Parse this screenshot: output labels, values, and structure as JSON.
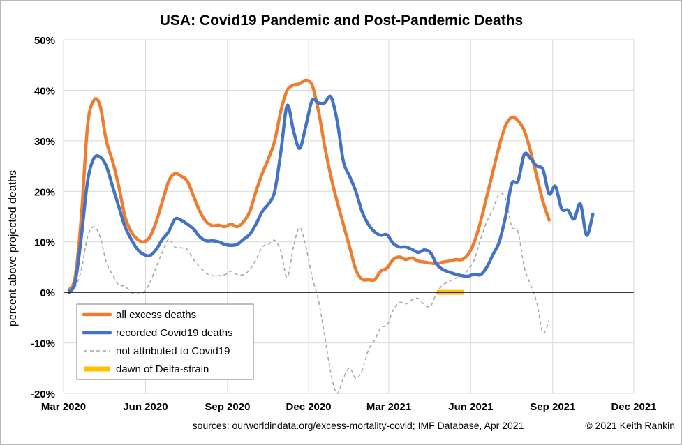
{
  "chart_data": {
    "type": "line",
    "title_prefix": "USA",
    "title_rest": ": Covid19 Pandemic and Post-Pandemic Deaths",
    "ylabel": "percent above projected deaths",
    "ylim": [
      -20,
      50
    ],
    "yticks": [
      -20,
      -10,
      0,
      10,
      20,
      30,
      40,
      50
    ],
    "ytick_labels": [
      "-20%",
      "-10%",
      "0%",
      "10%",
      "20%",
      "30%",
      "40%",
      "50%"
    ],
    "xlim": [
      "2020-03-01",
      "2021-12-01"
    ],
    "xticks": [
      "2020-03-01",
      "2020-06-01",
      "2020-09-01",
      "2020-12-01",
      "2021-03-01",
      "2021-06-01",
      "2021-09-01",
      "2021-12-01"
    ],
    "xtick_labels": [
      "Mar 2020",
      "Jun 2020",
      "Sep 2020",
      "Dec 2020",
      "Mar 2021",
      "Jun 2021",
      "Sep 2021",
      "Dec 2021"
    ],
    "grid": true,
    "legend_position": "bottom-left",
    "series": [
      {
        "name": "all excess deaths",
        "color": "#ED7D31",
        "style": "solid-thick",
        "points": [
          [
            "2020-03-07",
            0.5
          ],
          [
            "2020-03-14",
            3
          ],
          [
            "2020-03-21",
            15
          ],
          [
            "2020-03-28",
            33
          ],
          [
            "2020-04-04",
            38
          ],
          [
            "2020-04-11",
            37
          ],
          [
            "2020-04-18",
            30
          ],
          [
            "2020-04-25",
            26
          ],
          [
            "2020-05-02",
            21
          ],
          [
            "2020-05-09",
            15
          ],
          [
            "2020-05-16",
            12
          ],
          [
            "2020-05-23",
            10.5
          ],
          [
            "2020-05-30",
            10
          ],
          [
            "2020-06-06",
            11
          ],
          [
            "2020-06-13",
            14
          ],
          [
            "2020-06-20",
            18
          ],
          [
            "2020-06-27",
            22
          ],
          [
            "2020-07-04",
            23.5
          ],
          [
            "2020-07-11",
            23
          ],
          [
            "2020-07-18",
            22
          ],
          [
            "2020-07-25",
            19
          ],
          [
            "2020-08-01",
            16
          ],
          [
            "2020-08-08",
            14
          ],
          [
            "2020-08-15",
            13.2
          ],
          [
            "2020-08-22",
            13.3
          ],
          [
            "2020-08-29",
            13
          ],
          [
            "2020-09-05",
            13.5
          ],
          [
            "2020-09-12",
            13
          ],
          [
            "2020-09-19",
            14
          ],
          [
            "2020-09-26",
            16
          ],
          [
            "2020-10-03",
            20
          ],
          [
            "2020-10-10",
            23.5
          ],
          [
            "2020-10-17",
            26.5
          ],
          [
            "2020-10-24",
            30
          ],
          [
            "2020-10-31",
            36
          ],
          [
            "2020-11-07",
            40
          ],
          [
            "2020-11-14",
            41
          ],
          [
            "2020-11-21",
            41.3
          ],
          [
            "2020-11-28",
            42
          ],
          [
            "2020-12-05",
            41
          ],
          [
            "2020-12-12",
            36
          ],
          [
            "2020-12-19",
            29
          ],
          [
            "2020-12-26",
            23
          ],
          [
            "2021-01-02",
            18
          ],
          [
            "2021-01-09",
            13.5
          ],
          [
            "2021-01-16",
            9
          ],
          [
            "2021-01-23",
            4.5
          ],
          [
            "2021-01-30",
            2.6
          ],
          [
            "2021-02-06",
            2.5
          ],
          [
            "2021-02-13",
            2.5
          ],
          [
            "2021-02-20",
            4.2
          ],
          [
            "2021-02-27",
            4.8
          ],
          [
            "2021-03-06",
            6.5
          ],
          [
            "2021-03-13",
            7
          ],
          [
            "2021-03-20",
            6.5
          ],
          [
            "2021-03-27",
            6.8
          ],
          [
            "2021-04-03",
            6.2
          ],
          [
            "2021-04-10",
            6
          ],
          [
            "2021-04-17",
            5.8
          ],
          [
            "2021-04-24",
            5.7
          ],
          [
            "2021-05-01",
            6
          ],
          [
            "2021-05-08",
            6.2
          ],
          [
            "2021-05-15",
            6.5
          ],
          [
            "2021-05-22",
            6.5
          ],
          [
            "2021-05-29",
            7.5
          ],
          [
            "2021-06-05",
            10
          ],
          [
            "2021-06-12",
            14
          ],
          [
            "2021-06-19",
            19
          ],
          [
            "2021-06-26",
            24
          ],
          [
            "2021-07-03",
            29
          ],
          [
            "2021-07-10",
            33
          ],
          [
            "2021-07-17",
            34.6
          ],
          [
            "2021-07-24",
            34
          ],
          [
            "2021-07-31",
            32
          ],
          [
            "2021-08-07",
            28
          ],
          [
            "2021-08-14",
            23
          ],
          [
            "2021-08-21",
            18
          ],
          [
            "2021-08-28",
            14.3
          ]
        ]
      },
      {
        "name": "recorded Covid19 deaths",
        "color": "#4472C4",
        "style": "solid-thick",
        "points": [
          [
            "2020-03-07",
            0
          ],
          [
            "2020-03-14",
            2
          ],
          [
            "2020-03-21",
            11
          ],
          [
            "2020-03-28",
            22
          ],
          [
            "2020-04-04",
            26.5
          ],
          [
            "2020-04-11",
            26.8
          ],
          [
            "2020-04-18",
            25
          ],
          [
            "2020-04-25",
            21
          ],
          [
            "2020-05-02",
            17
          ],
          [
            "2020-05-09",
            13
          ],
          [
            "2020-05-16",
            10.5
          ],
          [
            "2020-05-23",
            8.5
          ],
          [
            "2020-05-30",
            7.5
          ],
          [
            "2020-06-06",
            7.3
          ],
          [
            "2020-06-13",
            8.5
          ],
          [
            "2020-06-20",
            10.5
          ],
          [
            "2020-06-27",
            12
          ],
          [
            "2020-07-04",
            14.5
          ],
          [
            "2020-07-11",
            14.3
          ],
          [
            "2020-07-18",
            13.5
          ],
          [
            "2020-07-25",
            12.5
          ],
          [
            "2020-08-01",
            11
          ],
          [
            "2020-08-08",
            10.2
          ],
          [
            "2020-08-15",
            10.2
          ],
          [
            "2020-08-22",
            10
          ],
          [
            "2020-08-29",
            9.5
          ],
          [
            "2020-09-05",
            9.3
          ],
          [
            "2020-09-12",
            9.5
          ],
          [
            "2020-09-19",
            10.5
          ],
          [
            "2020-09-26",
            11.5
          ],
          [
            "2020-10-03",
            13.5
          ],
          [
            "2020-10-10",
            16
          ],
          [
            "2020-10-17",
            17.5
          ],
          [
            "2020-10-24",
            20
          ],
          [
            "2020-10-31",
            28
          ],
          [
            "2020-11-07",
            37
          ],
          [
            "2020-11-14",
            32
          ],
          [
            "2020-11-21",
            28.5
          ],
          [
            "2020-11-28",
            33
          ],
          [
            "2020-12-05",
            38
          ],
          [
            "2020-12-12",
            37.5
          ],
          [
            "2020-12-19",
            37.5
          ],
          [
            "2020-12-26",
            38.7
          ],
          [
            "2021-01-02",
            34
          ],
          [
            "2021-01-09",
            26
          ],
          [
            "2021-01-16",
            23
          ],
          [
            "2021-01-23",
            20
          ],
          [
            "2021-01-30",
            16
          ],
          [
            "2021-02-06",
            13.5
          ],
          [
            "2021-02-13",
            12
          ],
          [
            "2021-02-20",
            11.3
          ],
          [
            "2021-02-27",
            11.4
          ],
          [
            "2021-03-06",
            9.7
          ],
          [
            "2021-03-13",
            9
          ],
          [
            "2021-03-20",
            9
          ],
          [
            "2021-03-27",
            8.5
          ],
          [
            "2021-04-03",
            7.9
          ],
          [
            "2021-04-10",
            8.4
          ],
          [
            "2021-04-17",
            7.8
          ],
          [
            "2021-04-24",
            5.5
          ],
          [
            "2021-05-01",
            4.5
          ],
          [
            "2021-05-08",
            4
          ],
          [
            "2021-05-15",
            3.6
          ],
          [
            "2021-05-22",
            3.3
          ],
          [
            "2021-05-29",
            3.2
          ],
          [
            "2021-06-05",
            3.6
          ],
          [
            "2021-06-12",
            3.5
          ],
          [
            "2021-06-19",
            5
          ],
          [
            "2021-06-26",
            7.5
          ],
          [
            "2021-07-03",
            10
          ],
          [
            "2021-07-10",
            15
          ],
          [
            "2021-07-17",
            21.5
          ],
          [
            "2021-07-24",
            22
          ],
          [
            "2021-07-31",
            27.3
          ],
          [
            "2021-08-07",
            26.5
          ],
          [
            "2021-08-14",
            25
          ],
          [
            "2021-08-21",
            24.3
          ],
          [
            "2021-08-28",
            19.5
          ],
          [
            "2021-09-04",
            21
          ],
          [
            "2021-09-11",
            16.5
          ],
          [
            "2021-09-18",
            16.3
          ],
          [
            "2021-09-25",
            14.5
          ],
          [
            "2021-10-02",
            17.5
          ],
          [
            "2021-10-09",
            11.3
          ],
          [
            "2021-10-16",
            15.5
          ]
        ]
      },
      {
        "name": "not attributed to Covid19",
        "color": "#A6A6A6",
        "style": "dashed",
        "points": [
          [
            "2020-03-07",
            0.5
          ],
          [
            "2020-03-14",
            1
          ],
          [
            "2020-03-21",
            4.5
          ],
          [
            "2020-03-28",
            11
          ],
          [
            "2020-04-04",
            13
          ],
          [
            "2020-04-11",
            11
          ],
          [
            "2020-04-18",
            6
          ],
          [
            "2020-04-25",
            3.5
          ],
          [
            "2020-05-02",
            1.5
          ],
          [
            "2020-05-09",
            1.2
          ],
          [
            "2020-05-16",
            0
          ],
          [
            "2020-05-23",
            -0.3
          ],
          [
            "2020-05-30",
            0
          ],
          [
            "2020-06-06",
            2
          ],
          [
            "2020-06-13",
            5
          ],
          [
            "2020-06-20",
            8
          ],
          [
            "2020-06-27",
            10.5
          ],
          [
            "2020-07-04",
            9
          ],
          [
            "2020-07-11",
            8.8
          ],
          [
            "2020-07-18",
            8.5
          ],
          [
            "2020-07-25",
            6.5
          ],
          [
            "2020-08-01",
            5
          ],
          [
            "2020-08-08",
            3.8
          ],
          [
            "2020-08-15",
            3.3
          ],
          [
            "2020-08-22",
            3.3
          ],
          [
            "2020-08-29",
            3.5
          ],
          [
            "2020-09-05",
            4.2
          ],
          [
            "2020-09-12",
            3.5
          ],
          [
            "2020-09-19",
            3.5
          ],
          [
            "2020-09-26",
            4.5
          ],
          [
            "2020-10-03",
            6.5
          ],
          [
            "2020-10-10",
            9
          ],
          [
            "2020-10-17",
            9.5
          ],
          [
            "2020-10-24",
            10.3
          ],
          [
            "2020-10-31",
            8
          ],
          [
            "2020-11-07",
            3
          ],
          [
            "2020-11-14",
            9
          ],
          [
            "2020-11-21",
            12.8
          ],
          [
            "2020-11-28",
            9
          ],
          [
            "2020-12-05",
            3
          ],
          [
            "2020-12-12",
            -1.5
          ],
          [
            "2020-12-19",
            -8.5
          ],
          [
            "2020-12-26",
            -16
          ],
          [
            "2021-01-02",
            -20
          ],
          [
            "2021-01-09",
            -17
          ],
          [
            "2021-01-16",
            -15
          ],
          [
            "2021-01-23",
            -17
          ],
          [
            "2021-01-30",
            -15.5
          ],
          [
            "2021-02-06",
            -11.5
          ],
          [
            "2021-02-13",
            -9.5
          ],
          [
            "2021-02-20",
            -7
          ],
          [
            "2021-02-27",
            -6.5
          ],
          [
            "2021-03-06",
            -3.5
          ],
          [
            "2021-03-13",
            -2
          ],
          [
            "2021-03-20",
            -2.3
          ],
          [
            "2021-03-27",
            -1.5
          ],
          [
            "2021-04-03",
            -1.2
          ],
          [
            "2021-04-10",
            -2.5
          ],
          [
            "2021-04-17",
            -2.7
          ],
          [
            "2021-04-24",
            0
          ],
          [
            "2021-05-01",
            1.5
          ],
          [
            "2021-05-08",
            2.2
          ],
          [
            "2021-05-15",
            2.8
          ],
          [
            "2021-05-22",
            3.2
          ],
          [
            "2021-05-29",
            4.5
          ],
          [
            "2021-06-05",
            6.5
          ],
          [
            "2021-06-12",
            10.5
          ],
          [
            "2021-06-19",
            14
          ],
          [
            "2021-06-26",
            16.5
          ],
          [
            "2021-07-03",
            19.5
          ],
          [
            "2021-07-10",
            18.5
          ],
          [
            "2021-07-17",
            13
          ],
          [
            "2021-07-24",
            12
          ],
          [
            "2021-07-31",
            5
          ],
          [
            "2021-08-07",
            1.5
          ],
          [
            "2021-08-14",
            -2
          ],
          [
            "2021-08-21",
            -8
          ],
          [
            "2021-08-28",
            -5.5
          ]
        ]
      },
      {
        "name": "dawn of Delta-strain",
        "color": "#FFC000",
        "style": "solid-thick",
        "points": [
          [
            "2021-04-24",
            0
          ],
          [
            "2021-05-24",
            0
          ]
        ]
      }
    ]
  },
  "footer": {
    "sources": "sources:  ourworldindata.org/excess-mortality-covid;  IMF Database, Apr 2021",
    "copyright": "© 2021 Keith Rankin"
  }
}
